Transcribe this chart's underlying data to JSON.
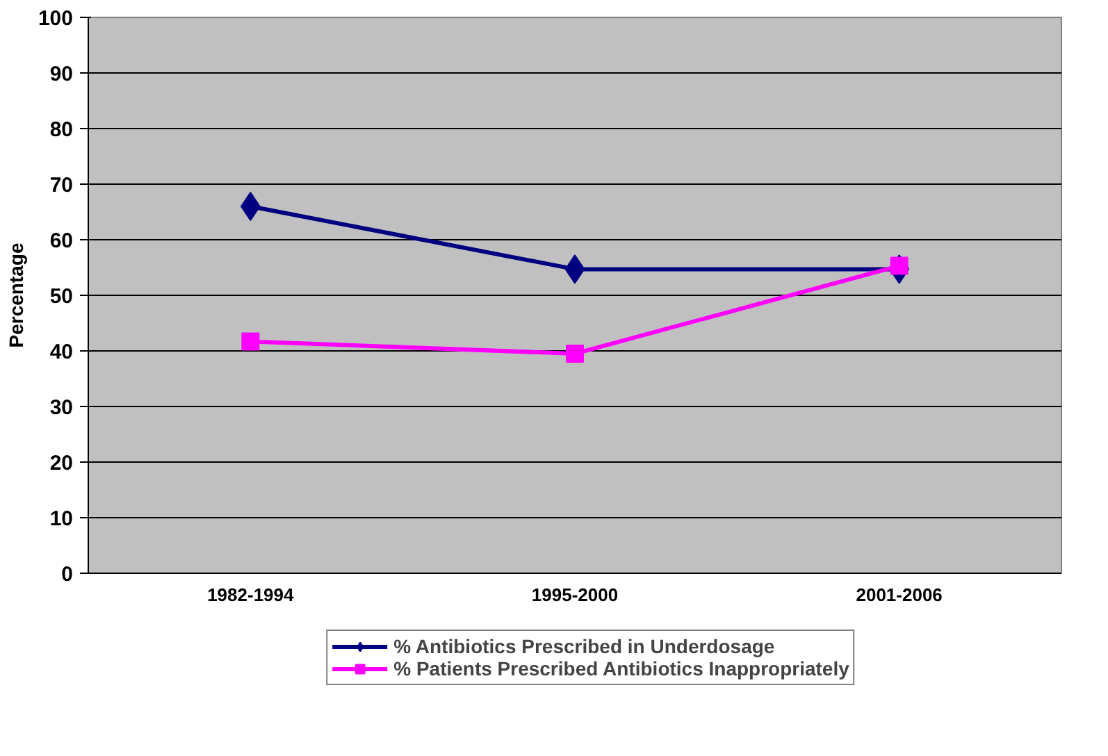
{
  "chart_data": {
    "type": "line",
    "ylabel": "Percentage",
    "categories": [
      "1982-1994",
      "1995-2000",
      "2001-2006"
    ],
    "series": [
      {
        "name": "% Antibiotics Prescribed in Underdosage",
        "color": "#000080",
        "marker": "diamond",
        "values": [
          66,
          54.7,
          54.7
        ]
      },
      {
        "name": "% Patients Prescribed Antibiotics Inappropriately",
        "color": "#ff00ff",
        "marker": "square",
        "values": [
          41.7,
          39.5,
          55.3
        ]
      }
    ],
    "ylim": [
      0,
      100
    ],
    "yticks": [
      0,
      10,
      20,
      30,
      40,
      50,
      60,
      70,
      80,
      90,
      100
    ],
    "grid": "y",
    "legend": "bottom",
    "line_style": "solid"
  }
}
